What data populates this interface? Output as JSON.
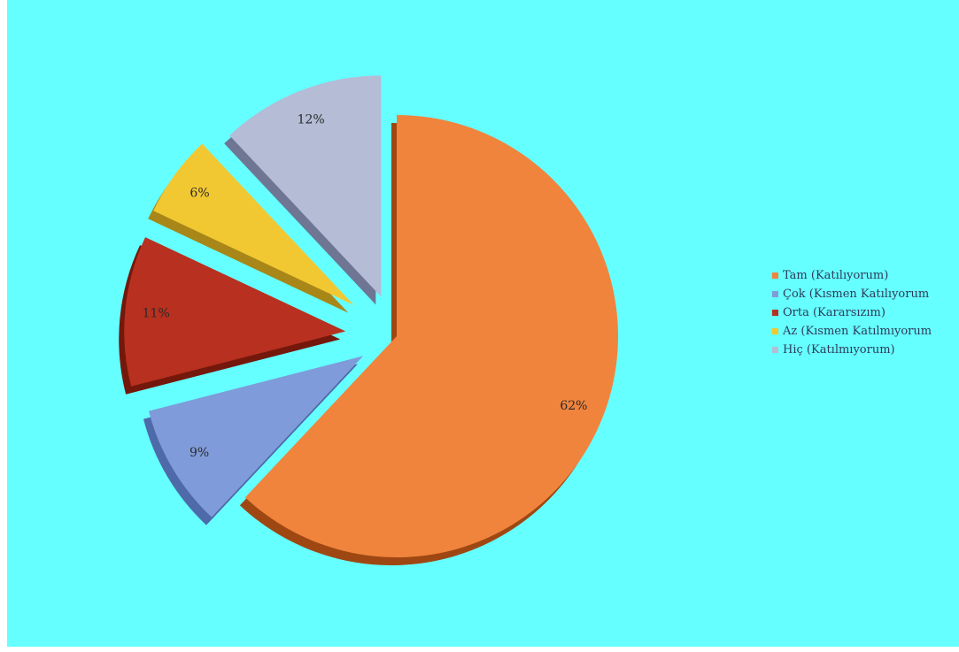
{
  "chart_data": {
    "type": "pie",
    "style": "3d-exploded",
    "background_color": "#66ffff",
    "legend_position": "right",
    "categories": [
      "Tam (Katılıyorum)",
      "Çok (Kısmen Katılıyorum",
      "Orta (Kararsızım)",
      "Az (Kısmen Katılmıyorum",
      "Hiç (Katılmıyorum)"
    ],
    "values": [
      62,
      9,
      11,
      6,
      12
    ],
    "data_labels": [
      "62%",
      "9%",
      "11%",
      "6%",
      "12%"
    ],
    "colors": [
      "#f0843c",
      "#7f9bd9",
      "#b8301f",
      "#f2c832",
      "#b4bcd6"
    ],
    "side_colors": [
      "#9e4713",
      "#4e6aa8",
      "#74180c",
      "#a88718",
      "#6e7694"
    ],
    "title": "",
    "xlabel": "",
    "ylabel": ""
  }
}
